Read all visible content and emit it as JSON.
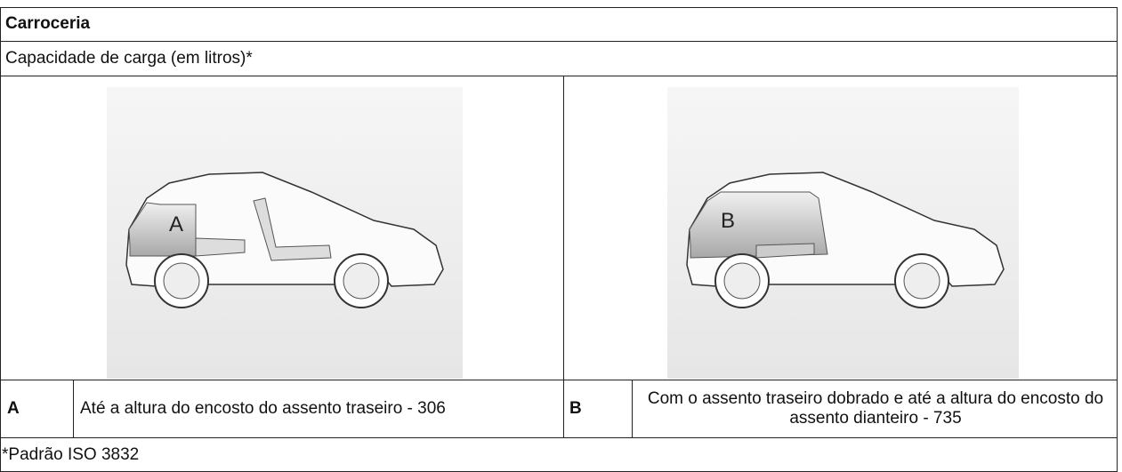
{
  "table": {
    "title": "Carroceria",
    "subtitle": "Capacidade de carga (em litros)*",
    "images": [
      {
        "label": "A"
      },
      {
        "label": "B"
      }
    ],
    "rows": [
      [
        "A",
        "Até a altura do encosto do assento traseiro - 306",
        "B",
        "Com o assento traseiro dobrado e até a altura do encosto do assento dianteiro - 735"
      ]
    ],
    "footnote": "*Padrão ISO 3832"
  }
}
